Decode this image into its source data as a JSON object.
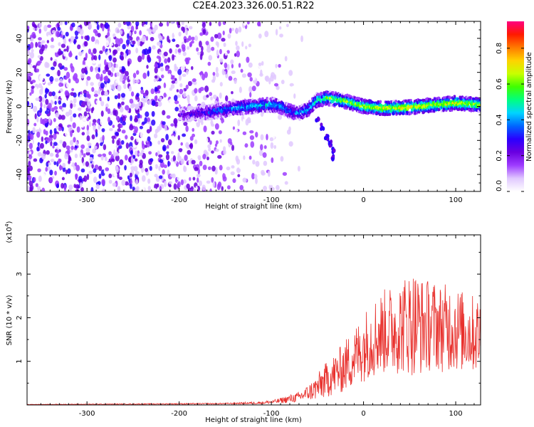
{
  "title": "C2E4.2023.326.00.51.R22",
  "chart_data": [
    {
      "type": "heatmap",
      "xlabel": "Height of straight line (km)",
      "ylabel": "Frequency (Hz)",
      "xlim": [
        -365,
        127
      ],
      "ylim": [
        -50,
        50
      ],
      "xticks": [
        -300,
        -200,
        -100,
        0,
        100
      ],
      "yticks": [
        -40,
        -20,
        0,
        20,
        40
      ],
      "colorbar": {
        "label": "Normalized spectral amplitude",
        "range": [
          0.0,
          0.95
        ],
        "ticks": [
          "0.0",
          "0.2",
          "0.4",
          "0.6",
          "0.8"
        ],
        "colors": [
          "#ffffff",
          "#e0c8ff",
          "#9e3cff",
          "#6a00e0",
          "#2a00ff",
          "#0066ff",
          "#00d4ff",
          "#00ff80",
          "#40ff00",
          "#c8ff00",
          "#ffd200",
          "#ff7a00",
          "#ff1a00",
          "#ff0080"
        ]
      },
      "noise_region": {
        "x_range": [
          -365,
          -125
        ],
        "freq_range": [
          -50,
          50
        ]
      },
      "signal_trace": {
        "x": [
          -200,
          -180,
          -160,
          -140,
          -120,
          -100,
          -90,
          -80,
          -70,
          -60,
          -50,
          -45,
          -40,
          -30,
          -20,
          0,
          20,
          40,
          60,
          80,
          100,
          127
        ],
        "freq": [
          -5,
          -4,
          -3,
          -1,
          0,
          1,
          0,
          -3,
          -4,
          -2,
          4,
          4,
          5,
          4,
          3,
          0,
          -1,
          -1,
          0,
          1,
          2,
          1
        ],
        "amplitude": [
          0.2,
          0.25,
          0.35,
          0.4,
          0.45,
          0.45,
          0.4,
          0.35,
          0.4,
          0.45,
          0.55,
          0.5,
          0.6,
          0.6,
          0.62,
          0.65,
          0.7,
          0.72,
          0.7,
          0.68,
          0.7,
          0.65
        ]
      },
      "branch_trace": {
        "x": [
          -50,
          -45,
          -40,
          -36,
          -33,
          -33
        ],
        "freq": [
          -7,
          -12,
          -18,
          -22,
          -26,
          -30
        ]
      }
    },
    {
      "type": "line",
      "xlabel": "Height of straight line (km)",
      "ylabel": "SNR (10 * v/v)",
      "multiplier": "(x10^4)",
      "xlim": [
        -365,
        127
      ],
      "ylim": [
        0,
        3.9
      ],
      "xticks": [
        -300,
        -200,
        -100,
        0,
        100
      ],
      "yticks": [
        1,
        2,
        3
      ],
      "series": [
        {
          "color": "#e8302c",
          "envelope_x": [
            -365,
            -250,
            -150,
            -110,
            -95,
            -85,
            -70,
            -60,
            -50,
            -45,
            -35,
            -25,
            -15,
            -5,
            5,
            15,
            25,
            35,
            45,
            55,
            65,
            75,
            85,
            95,
            105,
            115,
            127
          ],
          "envelope_mean": [
            0.01,
            0.02,
            0.03,
            0.05,
            0.08,
            0.12,
            0.18,
            0.28,
            0.4,
            0.5,
            0.65,
            0.8,
            1.0,
            1.2,
            1.45,
            1.6,
            1.7,
            1.75,
            1.85,
            1.9,
            1.8,
            1.85,
            1.75,
            1.8,
            1.7,
            1.65,
            1.6
          ],
          "envelope_spread": [
            0.005,
            0.01,
            0.015,
            0.03,
            0.05,
            0.08,
            0.12,
            0.18,
            0.3,
            0.38,
            0.45,
            0.55,
            0.65,
            0.75,
            0.85,
            0.95,
            1.0,
            1.05,
            1.15,
            1.25,
            1.1,
            1.05,
            1.0,
            1.05,
            0.95,
            0.9,
            0.9
          ]
        }
      ]
    }
  ]
}
